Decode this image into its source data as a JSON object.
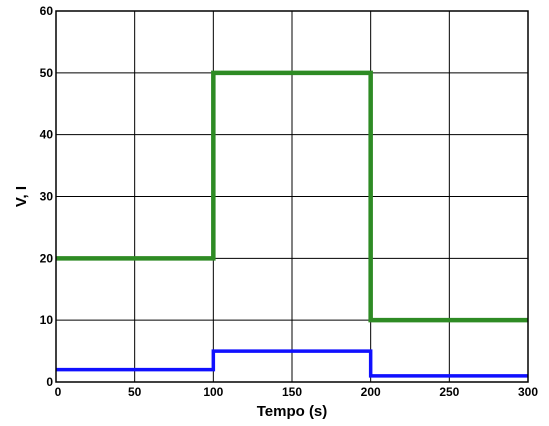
{
  "chart_data": {
    "type": "line",
    "title": "",
    "xlabel": "Tempo (s)",
    "ylabel": "V, I",
    "xlim": [
      0,
      300
    ],
    "ylim": [
      0,
      60
    ],
    "xticks": [
      0,
      50,
      100,
      150,
      200,
      250,
      300
    ],
    "yticks": [
      0,
      10,
      20,
      30,
      40,
      50,
      60
    ],
    "xtick_labels": [
      "0",
      "50",
      "100",
      "150",
      "200",
      "250",
      "300"
    ],
    "ytick_labels": [
      "0",
      "10",
      "20",
      "30",
      "40",
      "50",
      "60"
    ],
    "grid": true,
    "legend": "none",
    "series": [
      {
        "color": "#2e8b24",
        "points": [
          [
            0,
            20
          ],
          [
            100,
            20
          ],
          [
            100,
            50
          ],
          [
            200,
            50
          ],
          [
            200,
            10
          ],
          [
            300,
            10
          ]
        ]
      },
      {
        "color": "#1010ff",
        "points": [
          [
            0,
            2
          ],
          [
            100,
            2
          ],
          [
            100,
            5
          ],
          [
            200,
            5
          ],
          [
            200,
            1
          ],
          [
            300,
            1
          ]
        ]
      }
    ]
  }
}
